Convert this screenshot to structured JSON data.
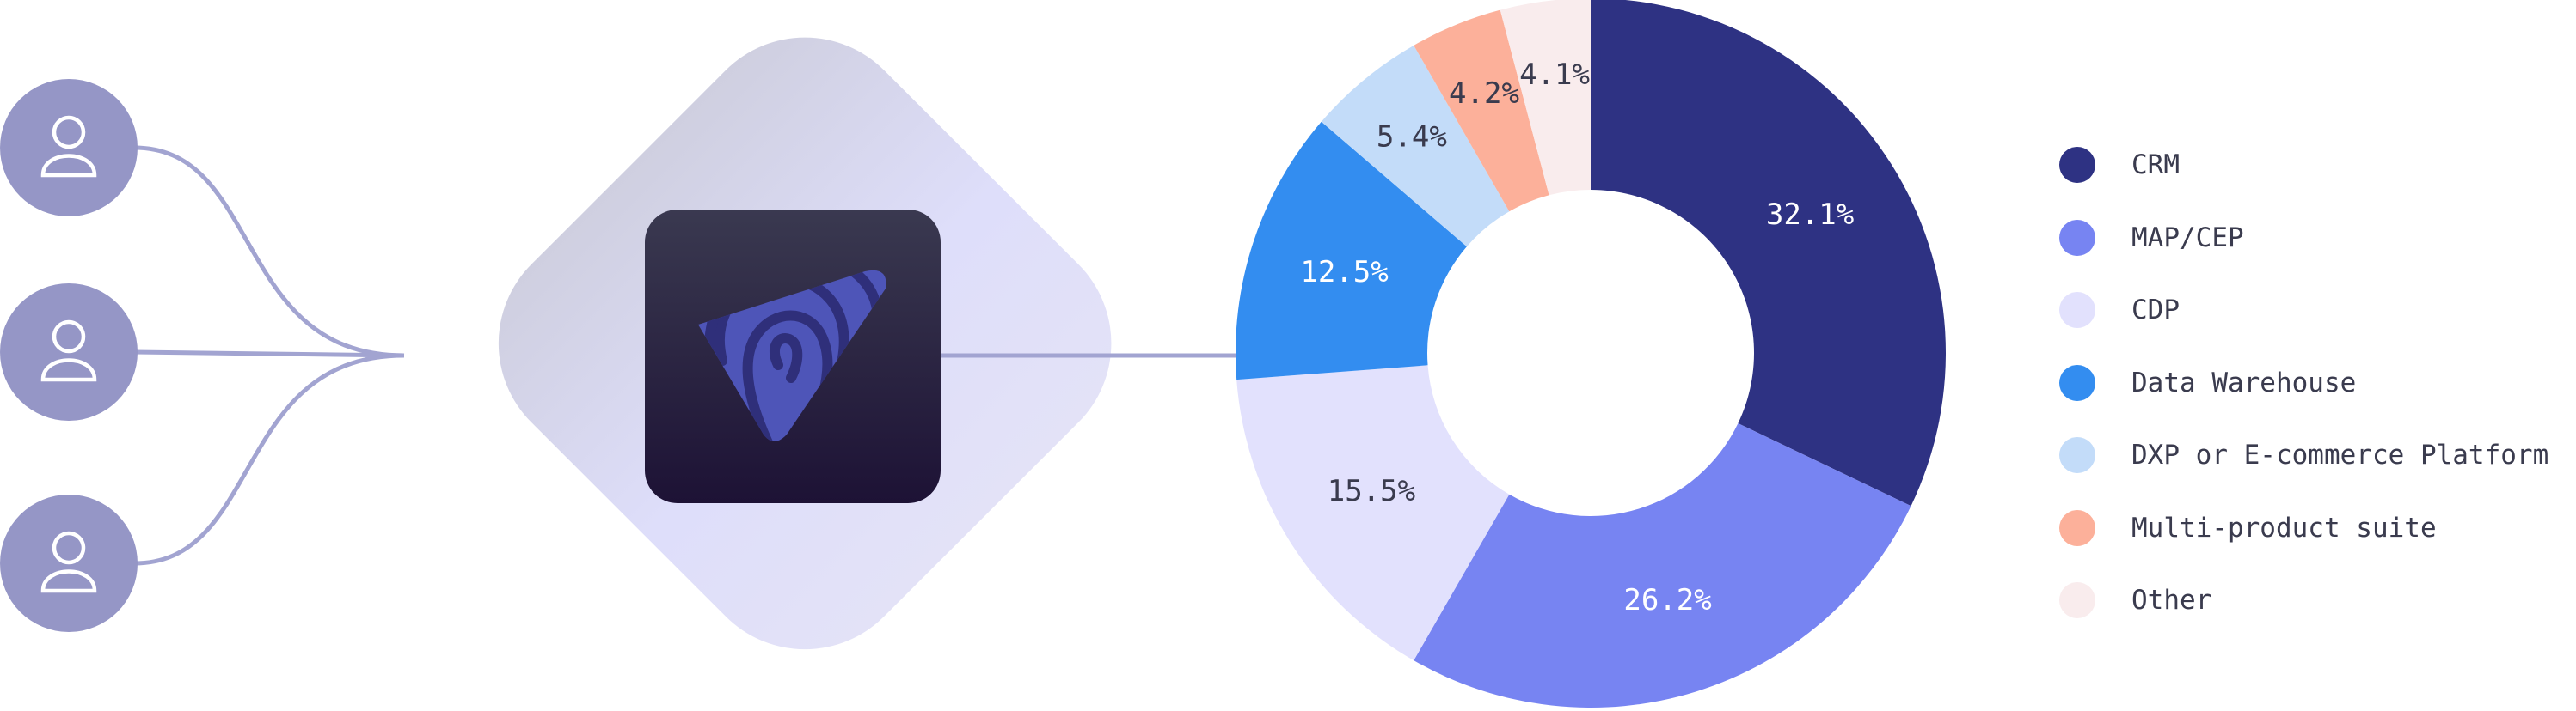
{
  "chart_data": {
    "type": "donut",
    "series": [
      {
        "name": "CRM",
        "value": 32.1,
        "label": "32.1%",
        "color": "#2e3283",
        "label_color": "#ffffff"
      },
      {
        "name": "MAP/CEP",
        "value": 26.2,
        "label": "26.2%",
        "color": "#7784f2",
        "label_color": "#ffffff"
      },
      {
        "name": "CDP",
        "value": 15.5,
        "label": "15.5%",
        "color": "#e2e1fd",
        "label_color": "#3a3b4e"
      },
      {
        "name": "Data Warehouse",
        "value": 12.5,
        "label": "12.5%",
        "color": "#338df0",
        "label_color": "#ffffff"
      },
      {
        "name": "DXP or E-commerce Platform",
        "value": 5.4,
        "label": "5.4%",
        "color": "#c3dcf9",
        "label_color": "#3a3b4e"
      },
      {
        "name": "Multi-product suite",
        "value": 4.2,
        "label": "4.2%",
        "color": "#fcb09a",
        "label_color": "#3a3b4e"
      },
      {
        "name": "Other",
        "value": 4.1,
        "label": "4.1%",
        "color": "#f9eced",
        "label_color": "#3a3b4e"
      }
    ],
    "start": "12 o'clock",
    "direction": "clockwise",
    "legend": "right"
  },
  "diagram": {
    "user_count": 3,
    "colors": {
      "user_node": "#9596c6",
      "connector": "#a2a4d1",
      "diamond": "#dedefa",
      "logo_tile_top": "#3a3950",
      "logo_tile_bottom": "#1d1235",
      "logo_mark": "#4e55b8"
    },
    "icons": [
      "user-icon",
      "logo-mark-icon"
    ]
  }
}
